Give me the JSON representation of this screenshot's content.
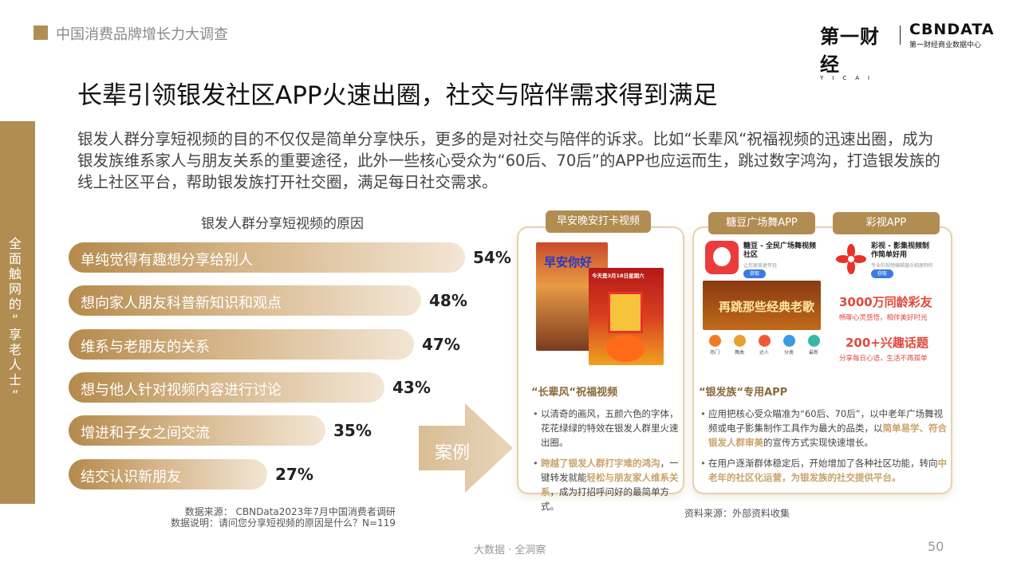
{
  "header": {
    "section_label": "中国消费品牌增长力大调查"
  },
  "logos": {
    "yicai_cn": "第一财经",
    "yicai_en": "YICAI",
    "cbndata_en": "CBNDATA",
    "cbndata_cn": "第一财经商业数据中心"
  },
  "title": "长辈引领银发社区APP火速出圈，社交与陪伴需求得到满足",
  "side_label": "全面触网的“享老人士”",
  "intro": "银发人群分享短视频的目的不仅仅是简单分享快乐，更多的是对社交与陪伴的诉求。比如“长辈风“祝福视频的迅速出圈，成为银发族维系家人与朋友关系的重要途径，此外一些核心受众为“60后、70后”的APP也应运而生，跳过数字鸿沟，打造银发族的线上社区平台，帮助银发族打开社交圈，满足每日社交需求。",
  "chart_data": {
    "type": "bar",
    "orientation": "horizontal",
    "title": "银发人群分享短视频的原因",
    "categories": [
      "单纯觉得有趣想分享给别人",
      "想向家人朋友科普新知识和观点",
      "维系与老朋友的关系",
      "想与他人针对视频内容进行讨论",
      "增进和子女之间交流",
      "结交认识新朋友"
    ],
    "values": [
      54,
      48,
      47,
      43,
      35,
      27
    ],
    "value_labels": [
      "54%",
      "48%",
      "47%",
      "43%",
      "35%",
      "27%"
    ],
    "unit": "%",
    "xlim": [
      0,
      54
    ],
    "grid": false
  },
  "footnotes": {
    "source": "数据来源： CBNData2023年7月中国消费者调研",
    "note": "数据说明：请问您分享短视频的原因是什么？N=119",
    "source_right": "资料来源：外部资料收集"
  },
  "case_label": "案例",
  "card1": {
    "tab": "早安晚安打卡视频",
    "thumb1_text": "早安你好",
    "thumb2_text": "今天是3月18日星期六",
    "heading": "“长辈风“祝福视频",
    "bullet1": "以清奇的画风，五颜六色的字体，花花绿绿的特效在银发人群里火速出圈。",
    "bullet2_hl1": "跨越了银发人群打字难的鸿沟",
    "bullet2_mid": "，一键转发就能",
    "bullet2_hl2": "轻松与朋友家人维系关系",
    "bullet2_end": "，成为打招呼问好的最简单方式。"
  },
  "card2": {
    "tab": "糖豆广场舞APP",
    "app_name": "糖豆 - 全民广场舞视频社区",
    "app_sub": "让您更美更年轻",
    "get_label": "获取",
    "banner_text": "再跳那些经典老歌",
    "nav": [
      "热门",
      "舞曲",
      "达人",
      "分类",
      "最新"
    ],
    "heading": "“银发族“专用APP",
    "bullet1_pre": "应用把核心受众瞄准为“60后、70后”，以中老年广场舞视频或电子影集制作工具作为最大的品类，以",
    "bullet1_hl": "简单易学、符合银发人群审美",
    "bullet1_end": "的宣传方式实现快速增长。",
    "bullet2_pre": "在用户逐渐群体稳定后，开始增加了各种社区功能，转向",
    "bullet2_hl": "中老年的社区化运营，为银发族的社交提供平台。"
  },
  "card3": {
    "tab": "彩视APP",
    "app_name": "彩视 - 影集视频制作简单好用",
    "app_sub": "专业的视频编辑器乐相册制作",
    "get_label": "获取",
    "promo1": "3000万同龄彩友",
    "promo1_sub": "畅聊心灵感悟，相伴美好时光",
    "promo2": "200+兴趣话题",
    "promo2_sub": "分享每日心语，生活不再孤单"
  },
  "footer": {
    "tagline": "大数据 · 全洞察",
    "page_number": "50"
  },
  "colors": {
    "accent": "#b28d52",
    "highlight": "#c9a36a",
    "promo_red": "#e0483c"
  }
}
